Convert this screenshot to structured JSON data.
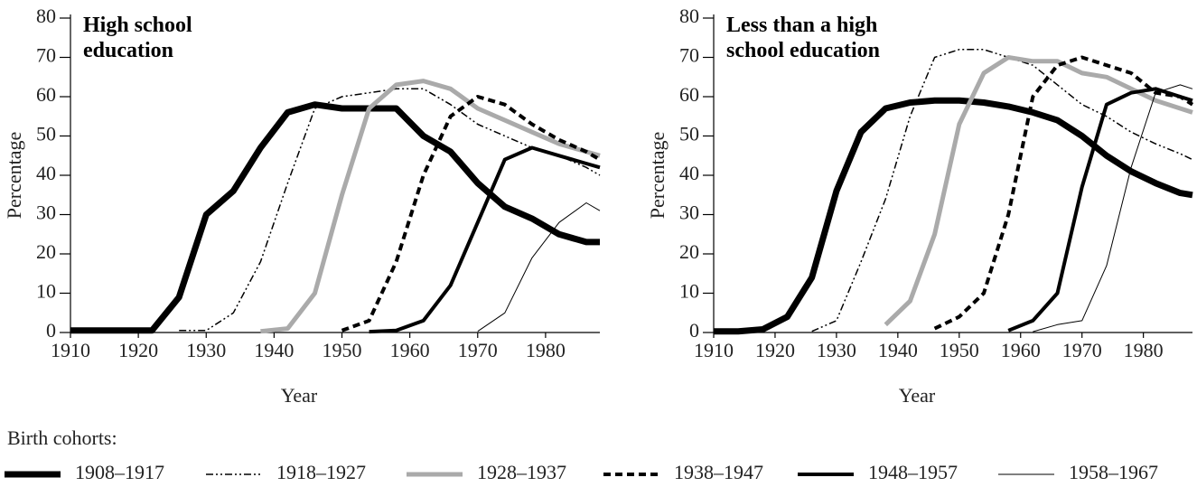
{
  "chart_data": [
    {
      "type": "line",
      "title": "High school education",
      "xlabel": "Year",
      "ylabel": "Percentage",
      "x": [
        1910,
        1914,
        1918,
        1922,
        1926,
        1930,
        1934,
        1938,
        1942,
        1946,
        1950,
        1954,
        1958,
        1962,
        1966,
        1970,
        1974,
        1978,
        1982,
        1986,
        1988
      ],
      "xlim": [
        1910,
        1988
      ],
      "xticks": [
        1910,
        1920,
        1930,
        1940,
        1950,
        1960,
        1970,
        1980
      ],
      "ylim": [
        0,
        80
      ],
      "yticks": [
        0,
        10,
        20,
        30,
        40,
        50,
        60,
        70,
        80
      ],
      "series": [
        {
          "name": "1908–1917",
          "color": "#000000",
          "width": 7,
          "dash": "none",
          "values": [
            0.5,
            0.5,
            0.5,
            0.5,
            9,
            30,
            36,
            47,
            56,
            58,
            57,
            57,
            57,
            50,
            46,
            38,
            32,
            29,
            25,
            23,
            23
          ]
        },
        {
          "name": "1918–1927",
          "color": "#000000",
          "width": 1.5,
          "dash": "8 3 2 3 2 3",
          "values": [
            null,
            null,
            null,
            null,
            0.5,
            0.5,
            5,
            18,
            38,
            57,
            60,
            61,
            62,
            62,
            58,
            53,
            50,
            47,
            45,
            42,
            40
          ]
        },
        {
          "name": "1928–1937",
          "color": "#aaaaaa",
          "width": 5,
          "dash": "none",
          "values": [
            null,
            null,
            null,
            null,
            null,
            null,
            null,
            0.3,
            1,
            10,
            35,
            57,
            63,
            64,
            62,
            57,
            54,
            51,
            48,
            46,
            45
          ]
        },
        {
          "name": "1938–1947",
          "color": "#000000",
          "width": 4,
          "dash": "8 5",
          "values": [
            null,
            null,
            null,
            null,
            null,
            null,
            null,
            null,
            null,
            null,
            0.5,
            3,
            18,
            40,
            55,
            60,
            58,
            53,
            49,
            46,
            44
          ]
        },
        {
          "name": "1948–1957",
          "color": "#000000",
          "width": 4,
          "dash": "none",
          "values": [
            null,
            null,
            null,
            null,
            null,
            null,
            null,
            null,
            null,
            null,
            null,
            0.2,
            0.5,
            3,
            12,
            28,
            44,
            47,
            45,
            43,
            42
          ]
        },
        {
          "name": "1958–1967",
          "color": "#000000",
          "width": 1,
          "dash": "none",
          "values": [
            null,
            null,
            null,
            null,
            null,
            null,
            null,
            null,
            null,
            null,
            null,
            null,
            null,
            null,
            null,
            0.3,
            5,
            19,
            28,
            33,
            31
          ]
        }
      ]
    },
    {
      "type": "line",
      "title": "Less than a high school education",
      "xlabel": "Year",
      "ylabel": "Percentage",
      "x": [
        1910,
        1914,
        1918,
        1922,
        1926,
        1930,
        1934,
        1938,
        1942,
        1946,
        1950,
        1954,
        1958,
        1962,
        1966,
        1970,
        1974,
        1978,
        1982,
        1986,
        1988
      ],
      "xlim": [
        1910,
        1988
      ],
      "xticks": [
        1910,
        1920,
        1930,
        1940,
        1950,
        1960,
        1970,
        1980
      ],
      "ylim": [
        0,
        80
      ],
      "yticks": [
        0,
        10,
        20,
        30,
        40,
        50,
        60,
        70,
        80
      ],
      "series": [
        {
          "name": "1908–1917",
          "color": "#000000",
          "width": 7,
          "dash": "none",
          "values": [
            0.3,
            0.3,
            0.8,
            4,
            14,
            36,
            51,
            57,
            58.5,
            59,
            59,
            58.5,
            57.5,
            56,
            54,
            50,
            45,
            41,
            38,
            35.5,
            35
          ]
        },
        {
          "name": "1918–1927",
          "color": "#000000",
          "width": 1.5,
          "dash": "8 3 2 3 2 3",
          "values": [
            null,
            null,
            null,
            null,
            0.3,
            3,
            18,
            34,
            55,
            70,
            72,
            72,
            70,
            68,
            63,
            58,
            55,
            51,
            48,
            45.5,
            44
          ]
        },
        {
          "name": "1928–1937",
          "color": "#aaaaaa",
          "width": 5,
          "dash": "none",
          "values": [
            null,
            null,
            null,
            null,
            null,
            null,
            null,
            2,
            8,
            25,
            53,
            66,
            70,
            69,
            69,
            66,
            65,
            62,
            59,
            57,
            56
          ]
        },
        {
          "name": "1938–1947",
          "color": "#000000",
          "width": 4,
          "dash": "8 5",
          "values": [
            null,
            null,
            null,
            null,
            null,
            null,
            null,
            null,
            null,
            1,
            4,
            10,
            30,
            60,
            68,
            70,
            68,
            66,
            61,
            60,
            58
          ]
        },
        {
          "name": "1948–1957",
          "color": "#000000",
          "width": 4,
          "dash": "none",
          "values": [
            null,
            null,
            null,
            null,
            null,
            null,
            null,
            null,
            null,
            null,
            null,
            null,
            0.5,
            3,
            10,
            37,
            58,
            61,
            62,
            60,
            59
          ]
        },
        {
          "name": "1958–1967",
          "color": "#000000",
          "width": 1,
          "dash": "none",
          "values": [
            null,
            null,
            null,
            null,
            null,
            null,
            null,
            null,
            null,
            null,
            null,
            null,
            null,
            0.2,
            2,
            3,
            17,
            42,
            61,
            63,
            62
          ]
        }
      ]
    }
  ],
  "legend_title": "Birth cohorts:"
}
